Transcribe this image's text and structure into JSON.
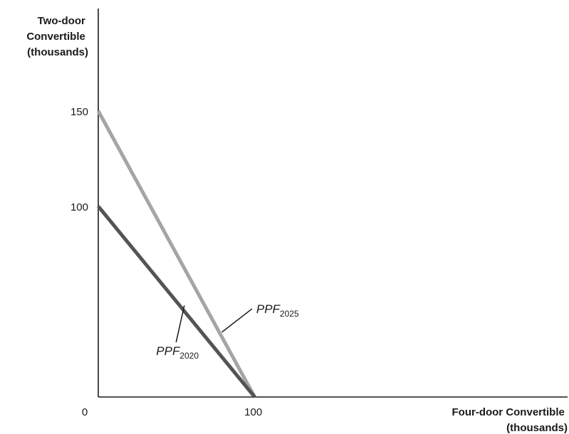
{
  "chart_data": {
    "type": "line",
    "xlabel": [
      "Four-door Convertible",
      "(thousands)"
    ],
    "ylabel": [
      "Two-door",
      "Convertible",
      "(thousands)"
    ],
    "xlim": [
      0,
      300
    ],
    "ylim": [
      0,
      200
    ],
    "origin_label": "0",
    "x_ticks": [
      {
        "value": 100,
        "label": "100"
      }
    ],
    "y_ticks": [
      {
        "value": 100,
        "label": "100"
      },
      {
        "value": 150,
        "label": "150"
      }
    ],
    "series": [
      {
        "name": "PPF",
        "name_sub": "2020",
        "color": "#545454",
        "points": [
          [
            0,
            100
          ],
          [
            100,
            0
          ]
        ],
        "label_anchor": [
          55,
          48
        ],
        "label_at": [
          37,
          22
        ]
      },
      {
        "name": "PPF",
        "name_sub": "2025",
        "color": "#a5a5a5",
        "points": [
          [
            0,
            150
          ],
          [
            100,
            0
          ]
        ],
        "label_anchor": [
          79,
          34
        ],
        "label_at": [
          101,
          44
        ]
      }
    ],
    "grid": false,
    "legend": "none"
  }
}
